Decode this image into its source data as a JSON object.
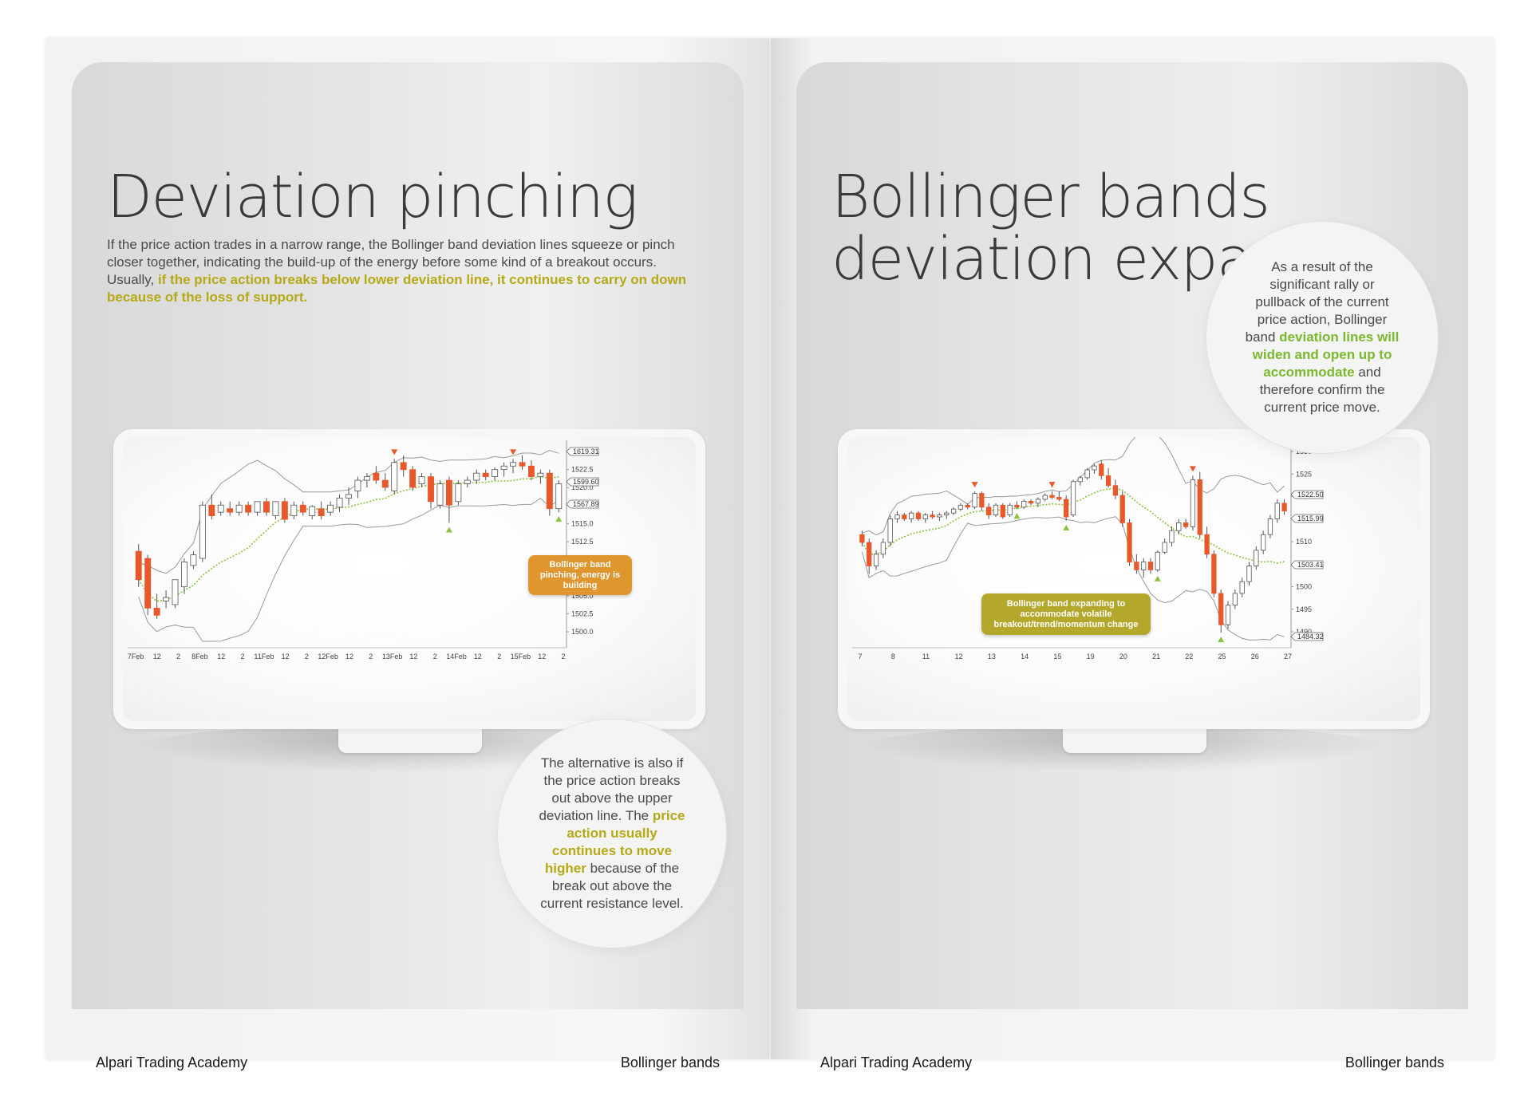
{
  "left_page": {
    "title": "Deviation pinching",
    "intro_plain": "If the price action trades in a narrow range, the Bollinger band deviation lines squeeze or pinch closer together, indicating the build-up of the energy before some kind of a breakout occurs. Usually, ",
    "intro_highlight": "if the price action breaks below lower deviation line, it continues to carry on down because of the loss of support.",
    "bubble_before": "The alternative is also if the price action breaks out above the upper deviation line. The ",
    "bubble_highlight": "price action usually continues to move higher",
    "bubble_after": " because of the break out above the current resistance level.",
    "callout": "Bollinger band pinching, energy is building",
    "footer_left": "Alpari Trading Academy",
    "footer_right": "Bollinger bands"
  },
  "right_page": {
    "title": "Bollinger bands deviation expansion",
    "bubble_before": "As a result of the significant rally or pullback of the current price action, Bollinger band ",
    "bubble_highlight": "deviation lines will widen and open up to accommodate",
    "bubble_after": " and therefore confirm the current price move.",
    "callout": "Bollinger band expanding to accommodate volatile breakout/trend/momentum change",
    "footer_left": "Alpari Trading Academy",
    "footer_right": "Bollinger bands"
  },
  "colors": {
    "bearish": "#e8582a",
    "bullish": "#ffffff",
    "band": "#9a9a9a",
    "middle_band": "#8ac43f",
    "olive_text": "#b5a915",
    "green_text": "#7cb82f",
    "callout_orange": "#e0962e",
    "callout_olive": "#b3a72c",
    "marker_down": "#e8582a",
    "marker_up": "#8ac43f"
  },
  "chart_data": [
    {
      "type": "candlestick",
      "x_tick_labels": [
        "7Feb",
        "12",
        "2",
        "8Feb",
        "12",
        "2",
        "11Feb",
        "12",
        "2",
        "12Feb",
        "12",
        "2",
        "13Feb",
        "12",
        "2",
        "14Feb",
        "12",
        "2",
        "15Feb",
        "12",
        "2"
      ],
      "y_tick_labels": [
        "1525.0",
        "1522.5",
        "1520.0",
        "1517.5",
        "1515.0",
        "1512.5",
        "1510.0",
        "1507.5",
        "1505.0",
        "1502.5",
        "1500.0"
      ],
      "ylim": [
        1499,
        1525.5
      ],
      "price_labels": [
        "1619.31",
        "1599.60",
        "1567.89"
      ],
      "candles_ohlc": [
        [
          1511,
          1512,
          1506,
          1507
        ],
        [
          1510,
          1510.5,
          1502,
          1503
        ],
        [
          1503,
          1505,
          1501.5,
          1502
        ],
        [
          1504,
          1505.5,
          1503,
          1504.5
        ],
        [
          1503.5,
          1506,
          1503,
          1507
        ],
        [
          1506,
          1510,
          1505,
          1509.5
        ],
        [
          1509,
          1511,
          1508.5,
          1510.5
        ],
        [
          1510,
          1518,
          1509.5,
          1517.5
        ],
        [
          1517.5,
          1519,
          1515.5,
          1516
        ],
        [
          1516.5,
          1518,
          1516,
          1517.5
        ],
        [
          1517,
          1518,
          1516,
          1516.5
        ],
        [
          1516.5,
          1518,
          1516,
          1517.5
        ],
        [
          1517.5,
          1518,
          1516,
          1516.5
        ],
        [
          1516.5,
          1518,
          1516,
          1518
        ],
        [
          1518,
          1518.5,
          1516,
          1516.5
        ],
        [
          1516,
          1518,
          1515.5,
          1518
        ],
        [
          1518,
          1518.5,
          1515,
          1515.5
        ],
        [
          1516,
          1518,
          1515.5,
          1517.5
        ],
        [
          1517.5,
          1518,
          1516,
          1516.5
        ],
        [
          1516,
          1517.5,
          1515.5,
          1517.3
        ],
        [
          1517,
          1518,
          1515.5,
          1516
        ],
        [
          1516.5,
          1518,
          1516,
          1517.5
        ],
        [
          1517.2,
          1519,
          1516.5,
          1518.5
        ],
        [
          1518.5,
          1520,
          1517.5,
          1519
        ],
        [
          1519.5,
          1521.5,
          1518.5,
          1521
        ],
        [
          1521,
          1522,
          1520,
          1521.5
        ],
        [
          1522,
          1523,
          1520.5,
          1521
        ],
        [
          1521,
          1522,
          1519.5,
          1520
        ],
        [
          1519.5,
          1524,
          1519,
          1523.5
        ],
        [
          1523.5,
          1524.5,
          1521.5,
          1522.5
        ],
        [
          1522.5,
          1523,
          1519.5,
          1520
        ],
        [
          1520.5,
          1522,
          1520,
          1521.5
        ],
        [
          1521.5,
          1522,
          1517,
          1518
        ],
        [
          1517.5,
          1521,
          1517,
          1520.5
        ],
        [
          1521,
          1521.5,
          1515,
          1517.5
        ],
        [
          1518,
          1521,
          1517.5,
          1520.5
        ],
        [
          1520.5,
          1521.5,
          1520,
          1521
        ],
        [
          1521,
          1522.5,
          1520.5,
          1522
        ],
        [
          1522,
          1522.5,
          1521,
          1521.5
        ],
        [
          1521.5,
          1522.8,
          1521,
          1522.5
        ],
        [
          1522.5,
          1523.5,
          1521.5,
          1523
        ],
        [
          1523,
          1524,
          1522,
          1523.5
        ],
        [
          1523.5,
          1524.5,
          1522.5,
          1523
        ],
        [
          1523,
          1523.8,
          1521,
          1521.5
        ],
        [
          1521.5,
          1522.5,
          1520.5,
          1522
        ],
        [
          1522,
          1522.5,
          1516,
          1517
        ],
        [
          1517,
          1521,
          1516.5,
          1520.5
        ]
      ],
      "markers": [
        {
          "type": "down",
          "candle": 28
        },
        {
          "type": "down",
          "candle": 41
        },
        {
          "type": "up",
          "candle": 34
        },
        {
          "type": "up",
          "candle": 46
        }
      ]
    },
    {
      "type": "candlestick",
      "x_tick_labels": [
        "7",
        "8",
        "11",
        "12",
        "13",
        "14",
        "15",
        "19",
        "20",
        "21",
        "22",
        "25",
        "26",
        "27"
      ],
      "y_tick_labels": [
        "1530",
        "1525",
        "1520",
        "1515",
        "1510",
        "1505",
        "1500",
        "1495",
        "1490"
      ],
      "ylim": [
        1484,
        1532
      ],
      "price_labels": [
        "1522.50",
        "1515.99",
        "1503.41",
        "1484.32"
      ],
      "candles_ohlc": [
        [
          1510,
          1511,
          1507,
          1508
        ],
        [
          1508,
          1509,
          1500,
          1502
        ],
        [
          1502,
          1506,
          1501,
          1505
        ],
        [
          1505,
          1509,
          1504,
          1508
        ],
        [
          1508,
          1515,
          1507,
          1514
        ],
        [
          1514,
          1516,
          1513,
          1515
        ],
        [
          1515,
          1515.5,
          1513.5,
          1514
        ],
        [
          1514,
          1516,
          1513,
          1515.5
        ],
        [
          1515.5,
          1516,
          1513.5,
          1514
        ],
        [
          1514,
          1515.5,
          1513,
          1515
        ],
        [
          1515,
          1516,
          1514,
          1514.5
        ],
        [
          1514.5,
          1515.5,
          1513.5,
          1515
        ],
        [
          1515,
          1516,
          1514,
          1515.5
        ],
        [
          1515.5,
          1517,
          1515,
          1516.5
        ],
        [
          1516.5,
          1518,
          1516,
          1517.5
        ],
        [
          1517.5,
          1518,
          1516.5,
          1517
        ],
        [
          1517,
          1521,
          1516.5,
          1520.5
        ],
        [
          1520.5,
          1521,
          1516,
          1517
        ],
        [
          1517,
          1518,
          1514,
          1515
        ],
        [
          1515,
          1518,
          1514.5,
          1517.5
        ],
        [
          1517.5,
          1518,
          1514,
          1514.5
        ],
        [
          1515,
          1518,
          1514.5,
          1517.5
        ],
        [
          1517.5,
          1518.5,
          1516.5,
          1517
        ],
        [
          1517,
          1519,
          1516.5,
          1518.5
        ],
        [
          1518.5,
          1519,
          1517.5,
          1518
        ],
        [
          1518,
          1519.5,
          1517,
          1519
        ],
        [
          1519,
          1520.5,
          1518.5,
          1520
        ],
        [
          1520,
          1521,
          1519,
          1519.5
        ],
        [
          1519.5,
          1521,
          1518.5,
          1519
        ],
        [
          1519,
          1520,
          1513.5,
          1514.5
        ],
        [
          1515,
          1524,
          1514.5,
          1523.5
        ],
        [
          1523.5,
          1525,
          1522.5,
          1524.5
        ],
        [
          1524.5,
          1527,
          1524,
          1526.5
        ],
        [
          1526.5,
          1528,
          1525.5,
          1527.5
        ],
        [
          1528,
          1529,
          1524,
          1525
        ],
        [
          1525,
          1527,
          1522,
          1522.5
        ],
        [
          1522.5,
          1524,
          1519,
          1520
        ],
        [
          1520,
          1521,
          1512,
          1513
        ],
        [
          1513,
          1514,
          1502,
          1503
        ],
        [
          1503,
          1505,
          1500,
          1501
        ],
        [
          1501,
          1504,
          1499,
          1503
        ],
        [
          1503,
          1504,
          1500,
          1501
        ],
        [
          1501,
          1506,
          1500.5,
          1505.5
        ],
        [
          1505.5,
          1509,
          1505,
          1508
        ],
        [
          1508,
          1512,
          1507,
          1511
        ],
        [
          1511,
          1514,
          1510,
          1513
        ],
        [
          1513,
          1514,
          1511.5,
          1512
        ],
        [
          1512,
          1525,
          1511,
          1524
        ],
        [
          1524,
          1526,
          1509,
          1510
        ],
        [
          1510,
          1512,
          1504,
          1505
        ],
        [
          1505,
          1506,
          1494,
          1495
        ],
        [
          1495,
          1496,
          1485,
          1487
        ],
        [
          1487,
          1493,
          1486,
          1492
        ],
        [
          1492,
          1496,
          1491,
          1495
        ],
        [
          1495,
          1499,
          1494,
          1498
        ],
        [
          1498,
          1503,
          1497,
          1502
        ],
        [
          1502,
          1507,
          1501,
          1506
        ],
        [
          1506,
          1511,
          1505,
          1510
        ],
        [
          1510,
          1515,
          1509,
          1514
        ],
        [
          1514,
          1519,
          1513,
          1518
        ],
        [
          1518,
          1519,
          1515,
          1516
        ]
      ],
      "markers": [
        {
          "type": "down",
          "candle": 16
        },
        {
          "type": "down",
          "candle": 27
        },
        {
          "type": "down",
          "candle": 47
        },
        {
          "type": "up",
          "candle": 22
        },
        {
          "type": "up",
          "candle": 29
        },
        {
          "type": "up",
          "candle": 42
        },
        {
          "type": "up",
          "candle": 51
        }
      ]
    }
  ]
}
